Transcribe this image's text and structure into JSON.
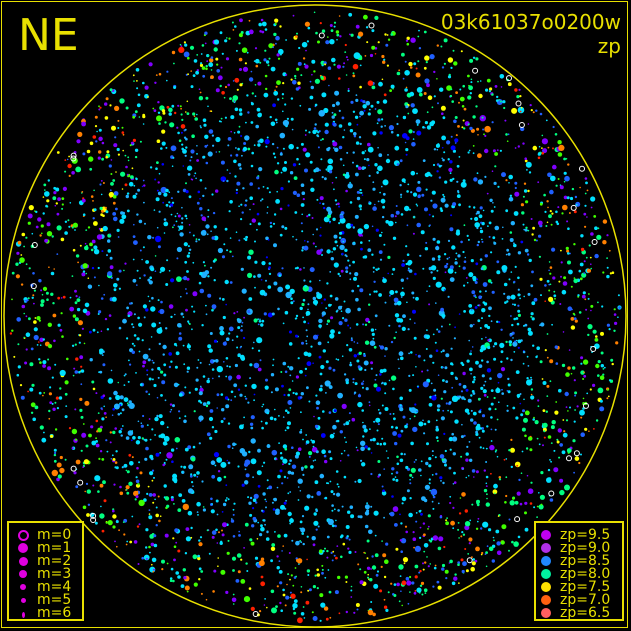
{
  "chart_data": {
    "type": "scatter",
    "title": "NE",
    "frame_id": "03k61037o0200w",
    "metric": "zp",
    "grid": false,
    "horizon_circle_color": "#e8e000",
    "size_legend": {
      "position": "bottom-left",
      "entries": [
        "m=0",
        "m=1",
        "m=2",
        "m=3",
        "m=4",
        "m=5",
        "m=6"
      ],
      "color": "#e000e0"
    },
    "color_legend": {
      "position": "bottom-right",
      "entries": [
        {
          "label": "zp=9.5",
          "color": "#c000f0"
        },
        {
          "label": "zp=9.0",
          "color": "#b030e8"
        },
        {
          "label": "zp=8.5",
          "color": "#2088ff"
        },
        {
          "label": "zp=8.0",
          "color": "#00f0a0"
        },
        {
          "label": "zp=7.5",
          "color": "#ffe000"
        },
        {
          "label": "zp=7.0",
          "color": "#ff6010"
        },
        {
          "label": "zp=6.5",
          "color": "#ff6060"
        }
      ]
    },
    "point_colors": [
      "#00e0ff",
      "#20b0ff",
      "#2060ff",
      "#0000ff",
      "#8000ff",
      "#00ff80",
      "#40ff00",
      "#ffff00",
      "#ff8000",
      "#ff2000",
      "#ffffff"
    ]
  }
}
